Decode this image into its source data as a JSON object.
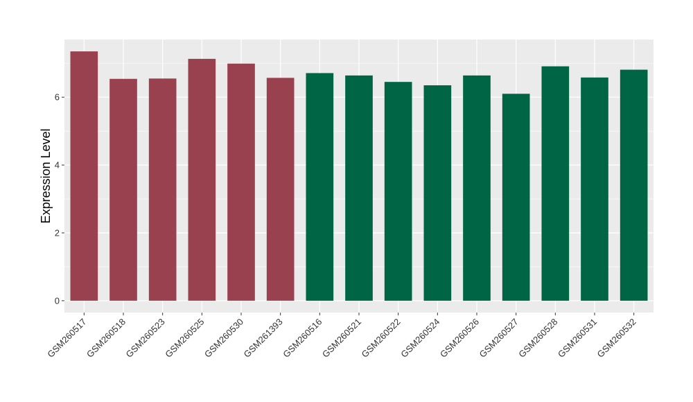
{
  "chart_data": {
    "type": "bar",
    "title": "",
    "xlabel": "",
    "ylabel": "Expression Level",
    "ylim": [
      -0.35,
      7.7
    ],
    "yticks": [
      0,
      2,
      4,
      6
    ],
    "grid": true,
    "legend": "none",
    "panel_color": "#ebebeb",
    "grid_color": "#ffffff",
    "categories": [
      "GSM260517",
      "GSM260518",
      "GSM260523",
      "GSM260525",
      "GSM260530",
      "GSM261393",
      "GSM260516",
      "GSM260521",
      "GSM260522",
      "GSM260524",
      "GSM260526",
      "GSM260527",
      "GSM260528",
      "GSM260531",
      "GSM260532"
    ],
    "values": [
      7.35,
      6.54,
      6.55,
      7.13,
      6.99,
      6.57,
      6.71,
      6.64,
      6.45,
      6.35,
      6.64,
      6.1,
      6.91,
      6.58,
      6.81
    ],
    "bar_colors": [
      "#9a4150",
      "#9a4150",
      "#9a4150",
      "#9a4150",
      "#9a4150",
      "#9a4150",
      "#006544",
      "#006544",
      "#006544",
      "#006544",
      "#006544",
      "#006544",
      "#006544",
      "#006544",
      "#006544"
    ]
  }
}
